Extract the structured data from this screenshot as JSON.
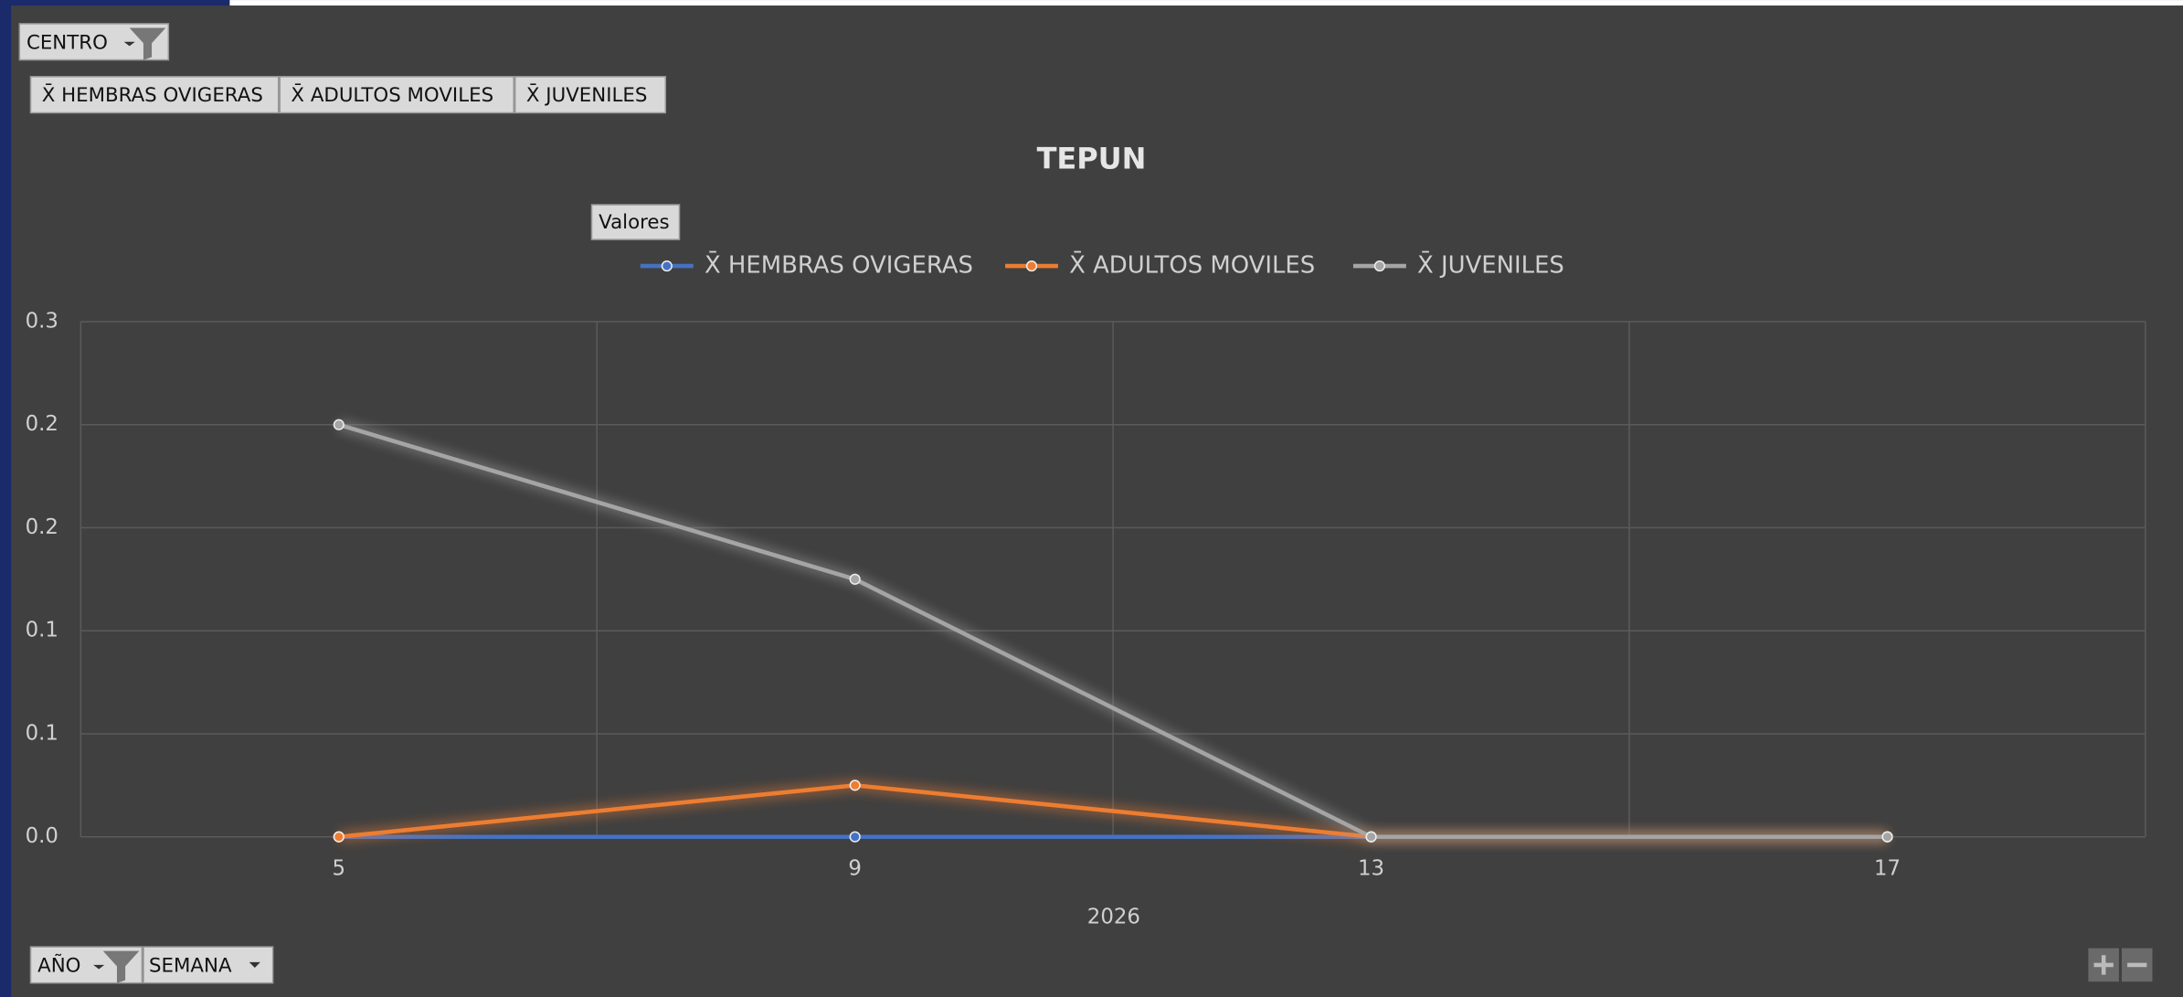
{
  "filters": {
    "centro": "CENTRO",
    "anio": "AÑO",
    "semana": "SEMANA",
    "valores": "Valores"
  },
  "field_buttons": [
    "X̄ HEMBRAS OVIGERAS",
    "X̄ ADULTOS MOVILES",
    "X̄ JUVENILES"
  ],
  "chart_data": {
    "type": "line",
    "title": "TEPUN",
    "categories": [
      "5",
      "9",
      "13",
      "17"
    ],
    "x_group_label": "2026",
    "series": [
      {
        "name": "X̄ HEMBRAS OVIGERAS",
        "color": "#4472c4",
        "values": [
          0,
          0,
          0,
          0
        ]
      },
      {
        "name": "X̄ ADULTOS MOVILES",
        "color": "#ed7d31",
        "values": [
          0,
          0.025,
          0,
          0
        ]
      },
      {
        "name": "X̄ JUVENILES",
        "color": "#a5a5a5",
        "values": [
          0.2,
          0.125,
          0,
          0
        ]
      }
    ],
    "ylim": [
      0,
      0.25
    ],
    "yticks": [
      {
        "value": 0,
        "label": "0.0"
      },
      {
        "value": 0.05,
        "label": "0.1"
      },
      {
        "value": 0.1,
        "label": "0.1"
      },
      {
        "value": 0.15,
        "label": "0.2"
      },
      {
        "value": 0.2,
        "label": "0.2"
      },
      {
        "value": 0.25,
        "label": "0.3"
      }
    ],
    "grid": true
  }
}
